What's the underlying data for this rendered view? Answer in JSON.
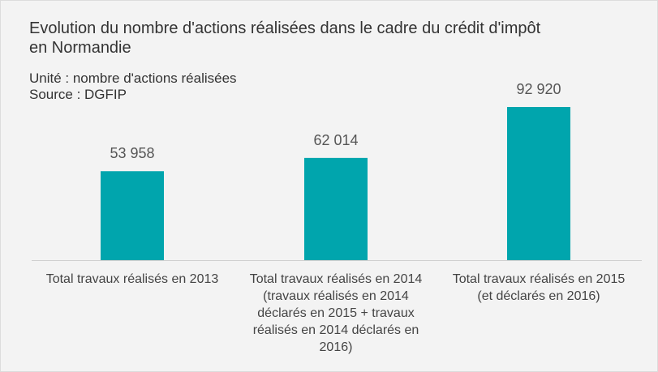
{
  "chart_data": {
    "type": "bar",
    "title": "Evolution du nombre d'actions réalisées dans le cadre du crédit d'impôt en Normandie",
    "subtitle": [
      "Unité : nombre d'actions réalisées",
      "Source : DGFIP"
    ],
    "categories": [
      "Total travaux réalisés en 2013",
      "Total travaux réalisés en 2014 (travaux réalisés en 2014 déclarés en 2015 + travaux réalisés en 2014 déclarés en 2016)",
      "Total travaux réalisés en 2015 (et déclarés en 2016)"
    ],
    "values": [
      53958,
      62014,
      92920
    ],
    "value_labels": [
      "53 958",
      "62 014",
      "92 920"
    ],
    "color": "#00a5ad"
  }
}
